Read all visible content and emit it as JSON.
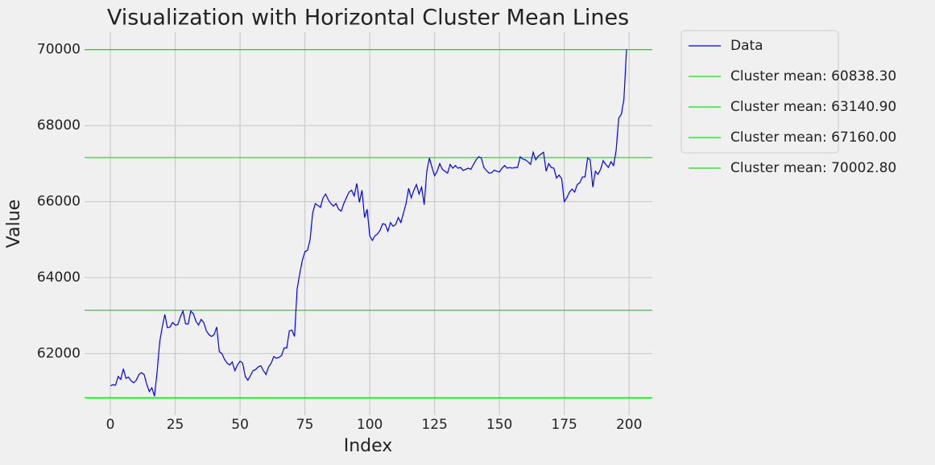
{
  "chart_data": {
    "type": "line",
    "title": "Visualization with Horizontal Cluster Mean Lines",
    "x_label": "Index",
    "y_label": "Value",
    "xlim": [
      -9.95,
      208.95
    ],
    "ylim": [
      60380,
      70460
    ],
    "xticks": [
      0,
      25,
      50,
      75,
      100,
      125,
      150,
      175,
      200
    ],
    "yticks": [
      62000,
      64000,
      66000,
      68000,
      70000
    ],
    "grid": true,
    "legend": "outside upper right",
    "series": [
      {
        "name": "Data",
        "color": "#0000ff",
        "values": [
          61150,
          61180,
          61170,
          61400,
          61320,
          61600,
          61350,
          61380,
          61280,
          61230,
          61300,
          61450,
          61500,
          61450,
          61200,
          61000,
          61100,
          60880,
          61500,
          62300,
          62700,
          63030,
          62680,
          62700,
          62820,
          62750,
          62760,
          62970,
          63120,
          62780,
          62780,
          63120,
          63050,
          62850,
          62750,
          62900,
          62820,
          62600,
          62500,
          62450,
          62500,
          62700,
          62050,
          62000,
          61850,
          61750,
          61700,
          61780,
          61550,
          61700,
          61800,
          61750,
          61400,
          61300,
          61420,
          61550,
          61580,
          61650,
          61680,
          61550,
          61450,
          61650,
          61750,
          61920,
          61880,
          61900,
          61950,
          62150,
          62150,
          62600,
          62620,
          62450,
          63700,
          64100,
          64450,
          64680,
          64720,
          65000,
          65700,
          65950,
          65900,
          65850,
          66100,
          66200,
          66050,
          65950,
          65880,
          65950,
          65800,
          65750,
          65950,
          66100,
          66250,
          66300,
          66150,
          66480,
          65980,
          66300,
          65580,
          65800,
          65100,
          64980,
          65100,
          65150,
          65250,
          65420,
          65400,
          65220,
          65450,
          65350,
          65400,
          65580,
          65450,
          65700,
          65950,
          66350,
          66100,
          66300,
          66450,
          66200,
          66380,
          65920,
          66800,
          67150,
          66900,
          66680,
          66800,
          67000,
          66850,
          66800,
          66750,
          66980,
          66880,
          66950,
          66880,
          66900,
          66820,
          66850,
          66880,
          66850,
          66980,
          67100,
          67180,
          67150,
          66900,
          66820,
          66750,
          66760,
          66830,
          66800,
          66780,
          66880,
          66950,
          66880,
          66900,
          66880,
          66900,
          66900,
          67180,
          67120,
          67100,
          67050,
          66980,
          67300,
          67100,
          67200,
          67250,
          67300,
          66800,
          67000,
          66900,
          66880,
          66620,
          66700,
          66600,
          66000,
          66100,
          66250,
          66330,
          66250,
          66450,
          66500,
          66650,
          66650,
          67150,
          67100,
          66380,
          66800,
          66720,
          66850,
          67080,
          66980,
          66900,
          67050,
          66950,
          67350,
          68200,
          68300,
          68700,
          70000
        ]
      }
    ],
    "hlines": [
      {
        "name": "Cluster mean: 60838.30",
        "value": 60838.3,
        "color": "#00ee00"
      },
      {
        "name": "Cluster mean: 63140.90",
        "value": 63140.9,
        "color": "#00ee00"
      },
      {
        "name": "Cluster mean: 67160.00",
        "value": 67160.0,
        "color": "#00ee00"
      },
      {
        "name": "Cluster mean: 70002.80",
        "value": 70002.8,
        "color": "#00ee00"
      }
    ]
  }
}
